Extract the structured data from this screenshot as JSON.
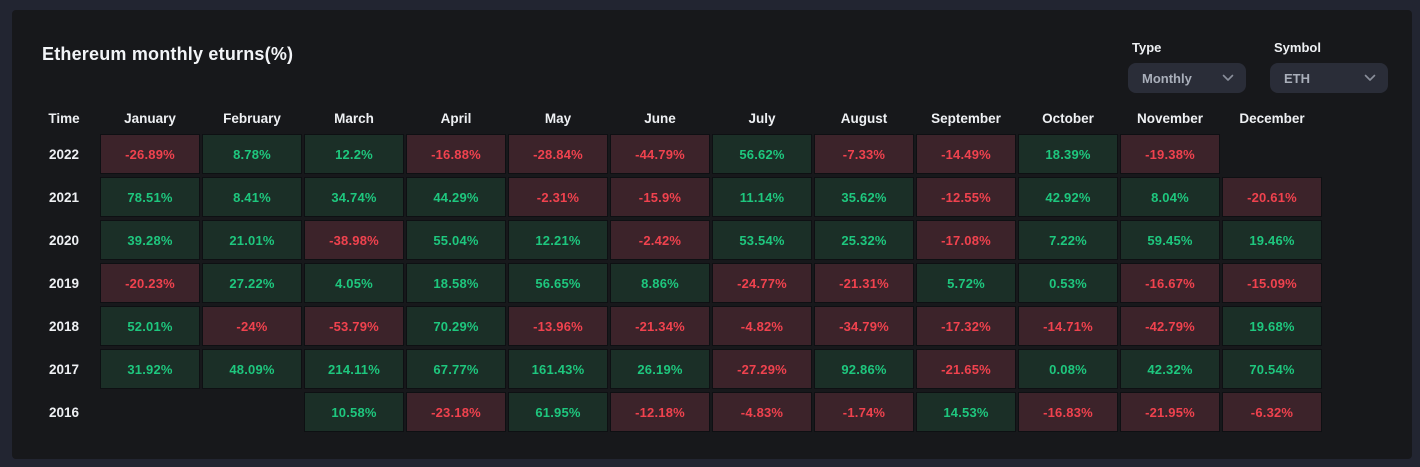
{
  "header": {
    "title": "Ethereum monthly eturns(%)"
  },
  "controls": {
    "type": {
      "label": "Type",
      "value": "Monthly",
      "icon": "chevron-down-icon"
    },
    "symbol": {
      "label": "Symbol",
      "value": "ETH",
      "icon": "chevron-down-icon"
    }
  },
  "table": {
    "time_header": "Time",
    "months": [
      "January",
      "February",
      "March",
      "April",
      "May",
      "June",
      "July",
      "August",
      "September",
      "October",
      "November",
      "December"
    ],
    "rows": [
      {
        "year": "2022",
        "values": [
          "-26.89%",
          "8.78%",
          "12.2%",
          "-16.88%",
          "-28.84%",
          "-44.79%",
          "56.62%",
          "-7.33%",
          "-14.49%",
          "18.39%",
          "-19.38%",
          ""
        ]
      },
      {
        "year": "2021",
        "values": [
          "78.51%",
          "8.41%",
          "34.74%",
          "44.29%",
          "-2.31%",
          "-15.9%",
          "11.14%",
          "35.62%",
          "-12.55%",
          "42.92%",
          "8.04%",
          "-20.61%"
        ]
      },
      {
        "year": "2020",
        "values": [
          "39.28%",
          "21.01%",
          "-38.98%",
          "55.04%",
          "12.21%",
          "-2.42%",
          "53.54%",
          "25.32%",
          "-17.08%",
          "7.22%",
          "59.45%",
          "19.46%"
        ]
      },
      {
        "year": "2019",
        "values": [
          "-20.23%",
          "27.22%",
          "4.05%",
          "18.58%",
          "56.65%",
          "8.86%",
          "-24.77%",
          "-21.31%",
          "5.72%",
          "0.53%",
          "-16.67%",
          "-15.09%"
        ]
      },
      {
        "year": "2018",
        "values": [
          "52.01%",
          "-24%",
          "-53.79%",
          "70.29%",
          "-13.96%",
          "-21.34%",
          "-4.82%",
          "-34.79%",
          "-17.32%",
          "-14.71%",
          "-42.79%",
          "19.68%"
        ]
      },
      {
        "year": "2017",
        "values": [
          "31.92%",
          "48.09%",
          "214.11%",
          "67.77%",
          "161.43%",
          "26.19%",
          "-27.29%",
          "92.86%",
          "-21.65%",
          "0.08%",
          "42.32%",
          "70.54%"
        ]
      },
      {
        "year": "2016",
        "values": [
          "",
          "",
          "10.58%",
          "-23.18%",
          "61.95%",
          "-12.18%",
          "-4.83%",
          "-1.74%",
          "14.53%",
          "-16.83%",
          "-21.95%",
          "-6.32%"
        ]
      }
    ]
  },
  "colors": {
    "positive_text": "#1ec77e",
    "negative_text": "#f0424e",
    "positive_cell_bg": "#1b2f27",
    "negative_cell_bg": "#3c232a",
    "card_bg": "#17181b",
    "page_bg": "#222531",
    "dropdown_bg": "#2a2d38"
  },
  "chart_data": {
    "type": "heatmap",
    "title": "Ethereum monthly eturns(%)",
    "x_categories": [
      "January",
      "February",
      "March",
      "April",
      "May",
      "June",
      "July",
      "August",
      "September",
      "October",
      "November",
      "December"
    ],
    "y_categories": [
      "2022",
      "2021",
      "2020",
      "2019",
      "2018",
      "2017",
      "2016"
    ],
    "value_unit": "%",
    "series": [
      {
        "name": "2022",
        "values": [
          -26.89,
          8.78,
          12.2,
          -16.88,
          -28.84,
          -44.79,
          56.62,
          -7.33,
          -14.49,
          18.39,
          -19.38,
          null
        ]
      },
      {
        "name": "2021",
        "values": [
          78.51,
          8.41,
          34.74,
          44.29,
          -2.31,
          -15.9,
          11.14,
          35.62,
          -12.55,
          42.92,
          8.04,
          -20.61
        ]
      },
      {
        "name": "2020",
        "values": [
          39.28,
          21.01,
          -38.98,
          55.04,
          12.21,
          -2.42,
          53.54,
          25.32,
          -17.08,
          7.22,
          59.45,
          19.46
        ]
      },
      {
        "name": "2019",
        "values": [
          -20.23,
          27.22,
          4.05,
          18.58,
          56.65,
          8.86,
          -24.77,
          -21.31,
          5.72,
          0.53,
          -16.67,
          -15.09
        ]
      },
      {
        "name": "2018",
        "values": [
          52.01,
          -24,
          -53.79,
          70.29,
          -13.96,
          -21.34,
          -4.82,
          -34.79,
          -17.32,
          -14.71,
          -42.79,
          19.68
        ]
      },
      {
        "name": "2017",
        "values": [
          31.92,
          48.09,
          214.11,
          67.77,
          161.43,
          26.19,
          -27.29,
          92.86,
          -21.65,
          0.08,
          42.32,
          70.54
        ]
      },
      {
        "name": "2016",
        "values": [
          null,
          null,
          10.58,
          -23.18,
          61.95,
          -12.18,
          -4.83,
          -1.74,
          14.53,
          -16.83,
          -21.95,
          -6.32
        ]
      }
    ],
    "legend": "off",
    "grid": "off",
    "color_rule": "green if value >= 0, red if value < 0, blank if null"
  }
}
